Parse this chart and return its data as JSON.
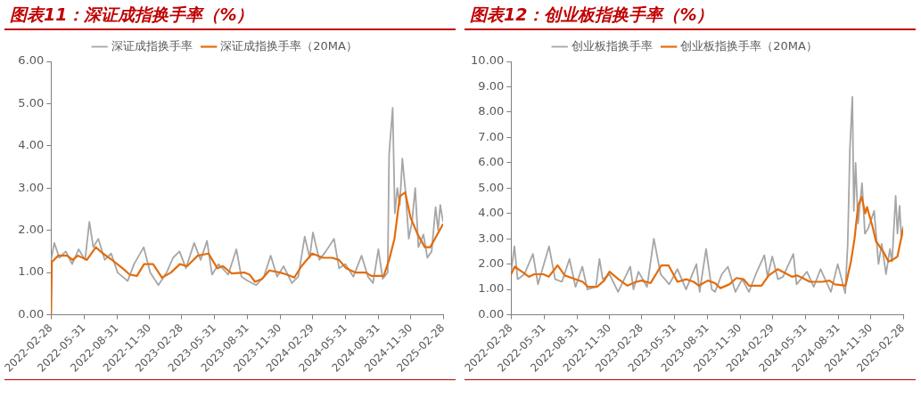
{
  "chart_data": [
    {
      "type": "line",
      "title": "图表11：深证成指换手率（%）",
      "legend": "top",
      "marker": "none",
      "grid": false,
      "xlim": [
        "2022-02-28",
        "2025-02-28"
      ],
      "xticks": [
        "2022-02-28",
        "2022-05-31",
        "2022-08-31",
        "2022-11-30",
        "2023-02-28",
        "2023-05-31",
        "2023-08-31",
        "2023-11-30",
        "2024-02-29",
        "2024-05-31",
        "2024-08-31",
        "2024-11-30",
        "2025-02-28"
      ],
      "ylim": [
        0,
        6
      ],
      "yticks": [
        {
          "value": 0,
          "label": "0.00"
        },
        {
          "value": 1,
          "label": "1.00"
        },
        {
          "value": 2,
          "label": "2.00"
        },
        {
          "value": 3,
          "label": "3.00"
        },
        {
          "value": 4,
          "label": "4.00"
        },
        {
          "value": 5,
          "label": "5.00"
        },
        {
          "value": 6,
          "label": "6.00"
        }
      ],
      "series": [
        {
          "name": "深证成指换手率",
          "color": "#a6a6a6",
          "x": [
            "2022-02-28",
            "2022-03-09",
            "2022-03-23",
            "2022-04-10",
            "2022-04-28",
            "2022-05-16",
            "2022-06-03",
            "2022-06-15",
            "2022-06-26",
            "2022-07-10",
            "2022-07-28",
            "2022-08-15",
            "2022-09-02",
            "2022-09-30",
            "2022-10-18",
            "2022-11-14",
            "2022-12-02",
            "2022-12-25",
            "2023-01-17",
            "2023-02-04",
            "2023-02-22",
            "2023-03-12",
            "2023-04-04",
            "2023-04-22",
            "2023-05-10",
            "2023-05-24",
            "2023-06-11",
            "2023-07-08",
            "2023-07-31",
            "2023-08-14",
            "2023-09-01",
            "2023-09-24",
            "2023-10-16",
            "2023-11-04",
            "2023-11-22",
            "2023-12-10",
            "2024-01-02",
            "2024-01-20",
            "2024-02-07",
            "2024-02-21",
            "2024-03-01",
            "2024-03-19",
            "2024-04-06",
            "2024-04-29",
            "2024-05-13",
            "2024-05-31",
            "2024-06-22",
            "2024-07-15",
            "2024-08-02",
            "2024-08-16",
            "2024-08-31",
            "2024-09-12",
            "2024-09-26",
            "2024-09-30",
            "2024-10-10",
            "2024-10-16",
            "2024-10-23",
            "2024-10-30",
            "2024-11-06",
            "2024-11-15",
            "2024-11-24",
            "2024-12-03",
            "2024-12-12",
            "2024-12-21",
            "2025-01-04",
            "2025-01-15",
            "2025-01-27",
            "2025-02-07",
            "2025-02-14",
            "2025-02-20",
            "2025-02-28"
          ],
          "values": [
            1.3,
            1.7,
            1.35,
            1.5,
            1.2,
            1.55,
            1.3,
            2.2,
            1.6,
            1.8,
            1.3,
            1.45,
            1.0,
            0.8,
            1.2,
            1.6,
            1.0,
            0.7,
            1.0,
            1.35,
            1.5,
            1.1,
            1.7,
            1.3,
            1.75,
            0.95,
            1.2,
            0.95,
            1.55,
            0.9,
            0.8,
            0.7,
            0.9,
            1.4,
            0.9,
            1.15,
            0.75,
            0.9,
            1.85,
            1.35,
            1.95,
            1.3,
            1.5,
            1.8,
            1.1,
            1.2,
            0.9,
            1.4,
            0.9,
            0.75,
            1.55,
            0.85,
            1.0,
            3.8,
            4.9,
            2.4,
            3.0,
            2.6,
            3.7,
            2.9,
            1.8,
            2.2,
            3.0,
            1.6,
            1.9,
            1.35,
            1.5,
            2.55,
            2.0,
            2.6,
            2.2
          ]
        },
        {
          "name": "深证成指换手率（20MA）",
          "color": "#e46c0a",
          "x": [
            "2022-02-28",
            "2022-03-02",
            "2022-03-20",
            "2022-04-14",
            "2022-04-29",
            "2022-05-14",
            "2022-06-08",
            "2022-07-03",
            "2022-07-23",
            "2022-08-17",
            "2022-09-16",
            "2022-10-06",
            "2022-10-26",
            "2022-11-15",
            "2022-12-10",
            "2023-01-04",
            "2023-01-29",
            "2023-02-23",
            "2023-03-15",
            "2023-04-14",
            "2023-05-14",
            "2023-06-08",
            "2023-06-23",
            "2023-07-18",
            "2023-08-22",
            "2023-09-06",
            "2023-09-21",
            "2023-10-11",
            "2023-10-31",
            "2023-11-30",
            "2023-12-20",
            "2024-01-09",
            "2024-01-29",
            "2024-02-28",
            "2024-03-29",
            "2024-04-23",
            "2024-05-13",
            "2024-06-02",
            "2024-06-27",
            "2024-07-27",
            "2024-08-11",
            "2024-09-15",
            "2024-09-30",
            "2024-10-15",
            "2024-10-30",
            "2024-11-14",
            "2024-11-29",
            "2024-12-19",
            "2025-01-08",
            "2025-01-23",
            "2025-02-28"
          ],
          "values": [
            0,
            1.25,
            1.4,
            1.4,
            1.3,
            1.4,
            1.3,
            1.6,
            1.45,
            1.3,
            1.1,
            0.95,
            0.92,
            1.2,
            1.2,
            0.88,
            1.0,
            1.2,
            1.15,
            1.4,
            1.45,
            1.1,
            1.15,
            0.98,
            1.0,
            0.95,
            0.78,
            0.85,
            1.05,
            1.0,
            0.95,
            0.88,
            1.15,
            1.45,
            1.35,
            1.35,
            1.3,
            1.1,
            1.0,
            1.0,
            0.92,
            0.92,
            1.3,
            1.8,
            2.8,
            2.9,
            2.3,
            1.9,
            1.6,
            1.6,
            2.15
          ]
        }
      ]
    },
    {
      "type": "line",
      "title": "图表12：创业板指换手率（%）",
      "legend": "top",
      "marker": "none",
      "grid": false,
      "xlim": [
        "2022-02-28",
        "2025-02-28"
      ],
      "xticks": [
        "2022-02-28",
        "2022-05-31",
        "2022-08-31",
        "2022-11-30",
        "2023-02-28",
        "2023-05-31",
        "2023-08-31",
        "2023-11-30",
        "2024-02-29",
        "2024-05-31",
        "2024-08-31",
        "2024-11-30",
        "2025-02-28"
      ],
      "ylim": [
        0,
        10
      ],
      "yticks": [
        {
          "value": 0,
          "label": "0.00"
        },
        {
          "value": 1,
          "label": "1.00"
        },
        {
          "value": 2,
          "label": "2.00"
        },
        {
          "value": 3,
          "label": "3.00"
        },
        {
          "value": 4,
          "label": "4.00"
        },
        {
          "value": 5,
          "label": "5.00"
        },
        {
          "value": 6,
          "label": "6.00"
        },
        {
          "value": 7,
          "label": "7.00"
        },
        {
          "value": 8,
          "label": "8.00"
        },
        {
          "value": 9,
          "label": "9.00"
        },
        {
          "value": 10,
          "label": "10.00"
        }
      ],
      "series": [
        {
          "name": "创业板指换手率",
          "color": "#a6a6a6",
          "x": [
            "2022-02-28",
            "2022-03-09",
            "2022-03-18",
            "2022-04-06",
            "2022-04-30",
            "2022-05-14",
            "2022-06-14",
            "2022-07-01",
            "2022-07-20",
            "2022-08-10",
            "2022-08-27",
            "2022-09-15",
            "2022-09-29",
            "2022-10-23",
            "2022-11-02",
            "2022-11-11",
            "2022-11-30",
            "2022-12-24",
            "2023-01-27",
            "2023-02-05",
            "2023-02-19",
            "2023-03-15",
            "2023-04-03",
            "2023-04-22",
            "2023-05-16",
            "2023-06-08",
            "2023-07-02",
            "2023-07-31",
            "2023-08-09",
            "2023-08-27",
            "2023-09-12",
            "2023-09-21",
            "2023-10-10",
            "2023-10-27",
            "2023-11-17",
            "2023-12-06",
            "2023-12-25",
            "2024-01-13",
            "2024-02-06",
            "2024-02-15",
            "2024-02-28",
            "2024-03-15",
            "2024-03-29",
            "2024-04-27",
            "2024-05-06",
            "2024-06-04",
            "2024-06-23",
            "2024-07-12",
            "2024-08-10",
            "2024-08-29",
            "2024-09-19",
            "2024-09-26",
            "2024-10-02",
            "2024-10-09",
            "2024-10-13",
            "2024-10-18",
            "2024-10-25",
            "2024-11-05",
            "2024-11-13",
            "2024-11-22",
            "2024-12-09",
            "2024-12-21",
            "2024-12-30",
            "2025-01-11",
            "2025-01-22",
            "2025-01-28",
            "2025-02-07",
            "2025-02-12",
            "2025-02-18",
            "2025-02-23",
            "2025-02-28"
          ],
          "values": [
            1.7,
            2.7,
            1.4,
            1.6,
            2.4,
            1.2,
            2.7,
            1.4,
            1.3,
            2.2,
            1.1,
            1.9,
            1.0,
            1.1,
            2.2,
            1.4,
            1.6,
            0.9,
            1.9,
            1.0,
            1.7,
            1.1,
            3.0,
            1.6,
            1.2,
            1.8,
            1.0,
            2.0,
            0.9,
            2.6,
            1.0,
            0.9,
            1.6,
            1.9,
            0.9,
            1.4,
            0.9,
            1.6,
            2.35,
            1.5,
            2.3,
            1.4,
            1.5,
            2.4,
            1.2,
            1.7,
            1.1,
            1.8,
            0.9,
            2.0,
            0.85,
            2.8,
            6.5,
            8.6,
            4.1,
            6.0,
            3.6,
            5.2,
            3.2,
            3.4,
            4.1,
            2.0,
            2.8,
            1.6,
            2.6,
            2.1,
            4.7,
            3.2,
            4.3,
            3.0,
            3.5
          ]
        },
        {
          "name": "创业板指换手率（20MA）",
          "color": "#e46c0a",
          "x": [
            "2022-02-28",
            "2022-03-10",
            "2022-03-30",
            "2022-04-19",
            "2022-05-04",
            "2022-05-29",
            "2022-06-13",
            "2022-07-08",
            "2022-07-28",
            "2022-08-17",
            "2022-09-16",
            "2022-10-01",
            "2022-10-26",
            "2022-11-15",
            "2022-11-30",
            "2022-12-25",
            "2023-01-19",
            "2023-02-13",
            "2023-02-28",
            "2023-03-25",
            "2023-04-24",
            "2023-05-14",
            "2023-06-08",
            "2023-07-03",
            "2023-07-23",
            "2023-08-07",
            "2023-09-01",
            "2023-09-21",
            "2023-10-06",
            "2023-10-31",
            "2023-11-20",
            "2023-12-10",
            "2023-12-25",
            "2024-01-29",
            "2024-02-18",
            "2024-03-14",
            "2024-04-03",
            "2024-04-23",
            "2024-05-08",
            "2024-05-23",
            "2024-06-12",
            "2024-07-17",
            "2024-08-06",
            "2024-08-21",
            "2024-09-20",
            "2024-10-05",
            "2024-10-15",
            "2024-10-25",
            "2024-11-04",
            "2024-11-14",
            "2024-11-19",
            "2024-12-04",
            "2024-12-14",
            "2025-01-03",
            "2025-01-18",
            "2025-02-02",
            "2025-02-12",
            "2025-02-28"
          ],
          "values": [
            1.6,
            1.9,
            1.7,
            1.5,
            1.6,
            1.6,
            1.5,
            1.95,
            1.55,
            1.45,
            1.3,
            1.1,
            1.1,
            1.35,
            1.7,
            1.4,
            1.15,
            1.3,
            1.35,
            1.25,
            1.95,
            1.95,
            1.3,
            1.4,
            1.3,
            1.15,
            1.35,
            1.25,
            1.05,
            1.2,
            1.45,
            1.4,
            1.15,
            1.15,
            1.55,
            1.8,
            1.65,
            1.5,
            1.55,
            1.45,
            1.3,
            1.3,
            1.35,
            1.2,
            1.15,
            2.1,
            3.0,
            4.3,
            4.65,
            4.0,
            4.25,
            3.5,
            2.9,
            2.5,
            2.1,
            2.2,
            2.3,
            3.4
          ]
        }
      ]
    }
  ]
}
